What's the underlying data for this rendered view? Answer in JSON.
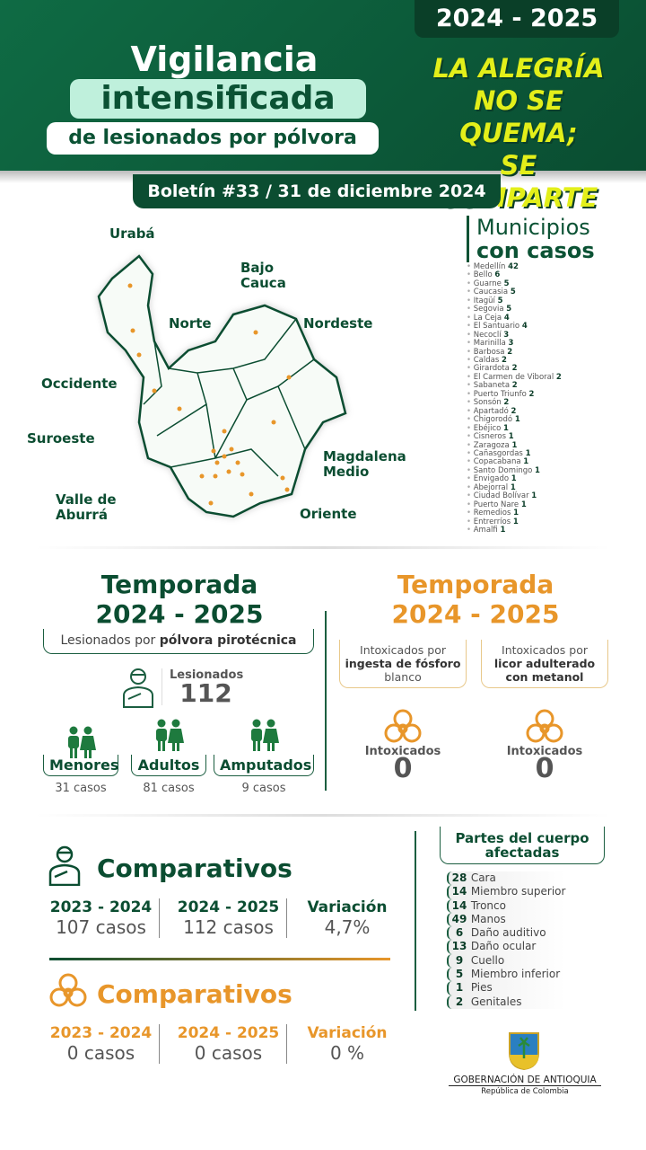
{
  "header": {
    "title_1": "Vigilancia",
    "title_2": "intensificada",
    "title_3": "de lesionados por pólvora",
    "season": "2024 - 2025",
    "slogan": [
      "LA ALEGRÍA",
      "NO SE QUEMA;",
      "SE COMPARTE"
    ]
  },
  "bulletin": "Boletín #33 / 31 de diciembre 2024",
  "map": {
    "regions": [
      "Urabá",
      "Bajo Cauca",
      "Norte",
      "Nordeste",
      "Occidente",
      "Suroeste",
      "Magdalena Medio",
      "Valle de Aburrá",
      "Oriente"
    ]
  },
  "municipios": {
    "title_1": "Municipios",
    "title_2": "con casos",
    "items": [
      [
        "Medellín",
        "42"
      ],
      [
        "Bello",
        "6"
      ],
      [
        "Guarne",
        "5"
      ],
      [
        "Caucasia",
        "5"
      ],
      [
        "Itagüí",
        "5"
      ],
      [
        "Segovia",
        "5"
      ],
      [
        "La Ceja",
        "4"
      ],
      [
        "El Santuario",
        "4"
      ],
      [
        "Necoclí",
        "3"
      ],
      [
        "Marinilla",
        "3"
      ],
      [
        "Barbosa",
        "2"
      ],
      [
        "Caldas",
        "2"
      ],
      [
        "Girardota",
        "2"
      ],
      [
        "El Carmen de Viboral",
        "2"
      ],
      [
        "Sabaneta",
        "2"
      ],
      [
        "Puerto Triunfo",
        "2"
      ],
      [
        "Sonsón",
        "2"
      ],
      [
        "Apartadó",
        "2"
      ],
      [
        "Chigorodó",
        "1"
      ],
      [
        "Ebéjico",
        "1"
      ],
      [
        "Cisneros",
        "1"
      ],
      [
        "Zaragoza",
        "1"
      ],
      [
        "Cañasgordas",
        "1"
      ],
      [
        "Copacabana",
        "1"
      ],
      [
        "Santo Domingo",
        "1"
      ],
      [
        "Envigado",
        "1"
      ],
      [
        "Abejorral",
        "1"
      ],
      [
        "Ciudad Bolívar",
        "1"
      ],
      [
        "Puerto Nare",
        "1"
      ],
      [
        "Remedios",
        "1"
      ],
      [
        "Entrerríos",
        "1"
      ],
      [
        "Amalfi",
        "1"
      ]
    ]
  },
  "polvora": {
    "title": "Temporada",
    "season": "2024 - 2025",
    "subtitle_a": "Lesionados por ",
    "subtitle_b": "pólvora pirotécnica",
    "total_label": "Lesionados",
    "total": "112",
    "groups": [
      {
        "label": "Menores",
        "cases": "31 casos"
      },
      {
        "label": "Adultos",
        "cases": "81 casos"
      },
      {
        "label": "Amputados",
        "cases": "9 casos"
      }
    ]
  },
  "intox": {
    "title": "Temporada",
    "season": "2024 - 2025",
    "cards": [
      {
        "line1": "Intoxicados por",
        "line2": "ingesta de fósforo",
        "line3": "blanco",
        "label": "Intoxicados",
        "value": "0"
      },
      {
        "line1": "Intoxicados por",
        "line2": "licor adulterado",
        "line3": "con metanol",
        "label": "Intoxicados",
        "value": "0"
      }
    ]
  },
  "comparativos": [
    {
      "title": "Comparativos",
      "cols": [
        {
          "h": "2023 - 2024",
          "v": "107 casos"
        },
        {
          "h": "2024 - 2025",
          "v": "112 casos"
        },
        {
          "h": "Variación",
          "v": "4,7%"
        }
      ]
    },
    {
      "title": "Comparativos",
      "cols": [
        {
          "h": "2023 - 2024",
          "v": "0 casos"
        },
        {
          "h": "2024 - 2025",
          "v": "0 casos"
        },
        {
          "h": "Variación",
          "v": "0 %"
        }
      ]
    }
  ],
  "body_parts": {
    "title_1": "Partes del cuerpo",
    "title_2": "afectadas",
    "items": [
      [
        "28",
        "Cara"
      ],
      [
        "14",
        "Miembro superior"
      ],
      [
        "14",
        "Tronco"
      ],
      [
        "49",
        "Manos"
      ],
      [
        "6",
        "Daño auditivo"
      ],
      [
        "13",
        "Daño ocular"
      ],
      [
        "9",
        "Cuello"
      ],
      [
        "5",
        "Miembro inferior"
      ],
      [
        "1",
        "Pies"
      ],
      [
        "2",
        "Genitales"
      ]
    ]
  },
  "footer": {
    "org": "GOBERNACIÓN DE ANTIOQUIA",
    "country": "República de Colombia"
  },
  "colors": {
    "green": "#0b4d31",
    "orange": "#e8962a",
    "yellow": "#e3ef1a"
  }
}
